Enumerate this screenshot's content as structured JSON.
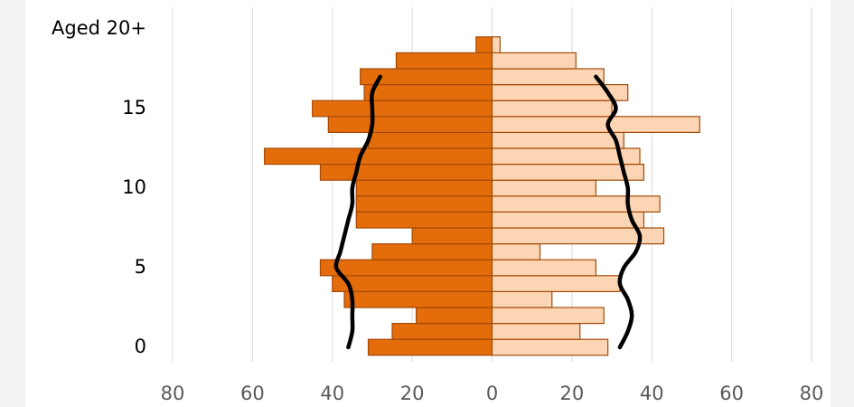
{
  "chart_data": {
    "type": "pyramid",
    "categories": [
      "0",
      null,
      null,
      null,
      null,
      "5",
      null,
      null,
      null,
      null,
      "10",
      null,
      null,
      null,
      null,
      "15",
      null,
      null,
      null,
      null,
      "Aged 20+"
    ],
    "xlim": [
      -80,
      80
    ],
    "xticks": [
      {
        "value": -80,
        "label": "80"
      },
      {
        "value": -60,
        "label": "60"
      },
      {
        "value": -40,
        "label": "40"
      },
      {
        "value": -20,
        "label": "20"
      },
      0,
      20,
      40,
      60,
      80
    ],
    "grid": true,
    "series": [
      {
        "kind": "bar",
        "color": "#e46c0a",
        "edge": "#a34a08",
        "values": [
          -31,
          -25,
          -19,
          -37,
          -40,
          -43,
          -30,
          -20,
          -34,
          -34,
          -34,
          -43,
          -57,
          -31,
          -41,
          -45,
          -32,
          -33,
          -24,
          -4,
          null
        ]
      },
      {
        "kind": "bar",
        "color": "#fcd5b4",
        "edge": "#a34a08",
        "values": [
          29,
          22,
          28,
          15,
          32,
          26,
          12,
          43,
          38,
          42,
          26,
          38,
          37,
          33,
          52,
          30,
          34,
          28,
          21,
          2,
          null
        ]
      },
      {
        "kind": "line",
        "color": "#000000",
        "values": [
          -36,
          -35,
          -35,
          -35,
          -36,
          -39,
          -38,
          -37,
          -36,
          -35,
          -35,
          -34,
          -33,
          -31,
          -30,
          -30,
          -30,
          -28,
          null,
          null,
          null
        ]
      },
      {
        "kind": "line",
        "color": "#000000",
        "values": [
          32,
          34,
          35,
          34,
          32,
          33,
          36,
          37,
          35,
          34,
          34,
          33,
          32,
          31,
          29,
          31,
          29,
          26,
          null,
          null,
          null
        ]
      }
    ]
  }
}
